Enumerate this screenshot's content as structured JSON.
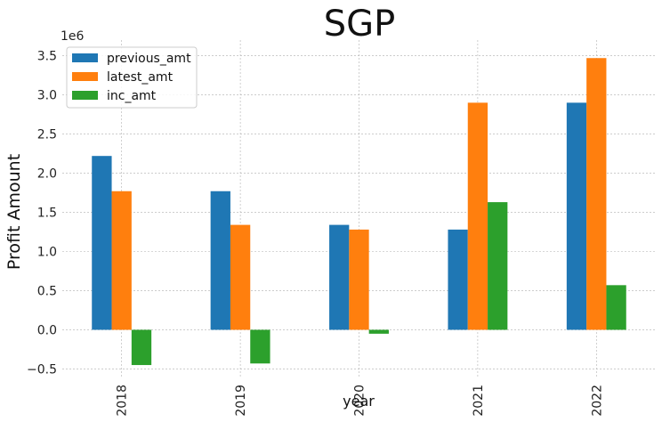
{
  "chart_data": {
    "type": "bar",
    "title": "SGP",
    "xlabel": "year",
    "ylabel": "Profit Amount",
    "y_offset_label": "1e6",
    "categories": [
      "2018",
      "2019",
      "2020",
      "2021",
      "2022"
    ],
    "series": [
      {
        "name": "previous_amt",
        "color": "#1f77b4",
        "values": [
          2.22,
          1.77,
          1.34,
          1.28,
          2.9
        ]
      },
      {
        "name": "latest_amt",
        "color": "#ff7f0e",
        "values": [
          1.77,
          1.34,
          1.28,
          2.9,
          3.47
        ]
      },
      {
        "name": "inc_amt",
        "color": "#2ca02c",
        "values": [
          -0.45,
          -0.43,
          -0.05,
          1.63,
          0.57
        ]
      }
    ],
    "ylim": [
      -0.62,
      3.7
    ],
    "yticks": [
      -0.5,
      0.0,
      0.5,
      1.0,
      1.5,
      2.0,
      2.5,
      3.0,
      3.5
    ],
    "ytick_labels": [
      "−0.5",
      "0.0",
      "0.5",
      "1.0",
      "1.5",
      "2.0",
      "2.5",
      "3.0",
      "3.5"
    ],
    "grid": true,
    "legend_position": "upper-left"
  }
}
